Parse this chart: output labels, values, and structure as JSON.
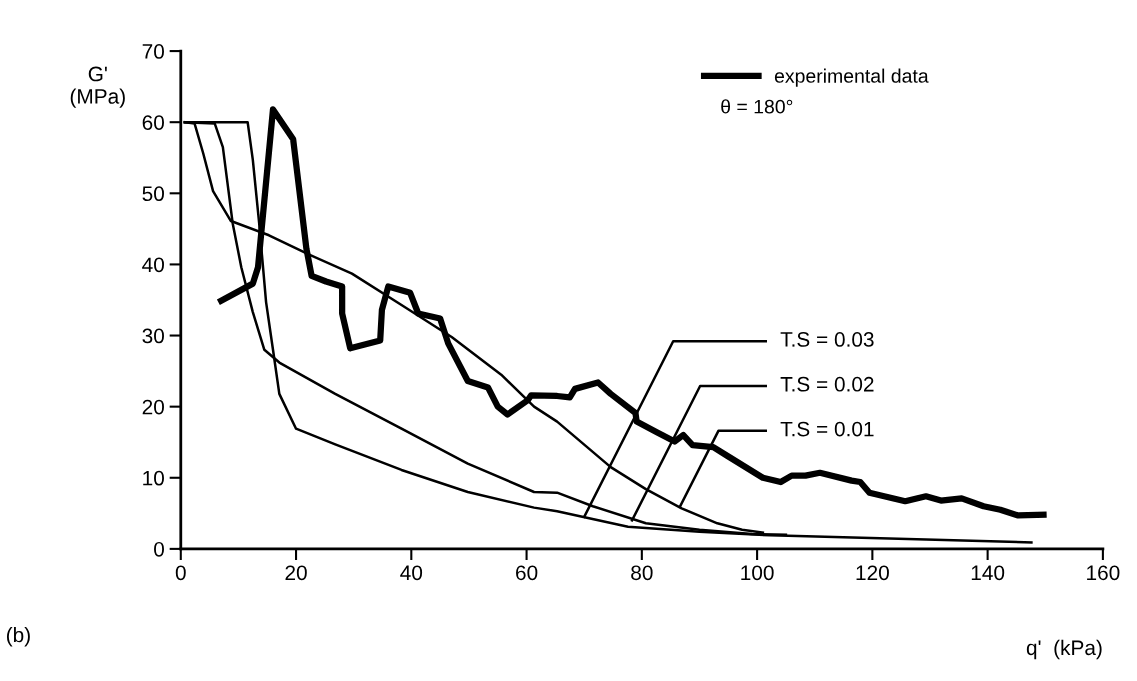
{
  "chart_data": {
    "type": "line",
    "xlabel": "q'  (kPa)",
    "ylabel": "G'\n(MPa)",
    "xlim": [
      0,
      160
    ],
    "xticks": [
      0,
      20,
      40,
      60,
      80,
      100,
      120,
      140,
      160
    ],
    "ylim": [
      0,
      70
    ],
    "yticks": [
      0,
      10,
      20,
      30,
      40,
      50,
      60,
      70
    ],
    "grid": false,
    "legend": "top right",
    "marker": "none",
    "line_style": "solid",
    "series": [
      {
        "name": "experimental data",
        "color": "#000000",
        "x": [
          7.0,
          12.5,
          13.4,
          16.0,
          19.5,
          21.8,
          22.7,
          25.2,
          28.0,
          28.0,
          29.4,
          34.6,
          34.9,
          36.0,
          39.8,
          41.2,
          45.0,
          46.4,
          49.8,
          53.3,
          55.0,
          56.7,
          60.2,
          60.8,
          65.3,
          67.5,
          68.4,
          72.4,
          74.6,
          78.9,
          79.1,
          82.6,
          85.7,
          87.2,
          88.8,
          92.4,
          94.8,
          101.0,
          104.1,
          106.0,
          108.4,
          110.9,
          116.4,
          117.9,
          119.5,
          125.7,
          129.3,
          131.9,
          135.5,
          139.3,
          142.2,
          145.3,
          149.7
        ],
        "values": [
          34.9,
          37.3,
          39.6,
          61.8,
          57.6,
          42.2,
          38.4,
          37.6,
          36.9,
          33.1,
          28.2,
          29.3,
          33.6,
          36.9,
          36.0,
          33.1,
          32.4,
          28.9,
          23.6,
          22.7,
          20.0,
          18.9,
          20.9,
          21.6,
          21.5,
          21.3,
          22.5,
          23.4,
          21.8,
          19.1,
          17.9,
          16.4,
          15.1,
          16.0,
          14.6,
          14.3,
          13.1,
          10.0,
          9.4,
          10.3,
          10.3,
          10.7,
          9.6,
          9.4,
          7.9,
          6.7,
          7.4,
          6.8,
          7.1,
          6.0,
          5.5,
          4.7,
          4.8
        ]
      },
      {
        "color": "#000000",
        "x": [
          0.7,
          2.4,
          3.9,
          5.6,
          8.7,
          15.3,
          22.2,
          29.7,
          38.3,
          47.0,
          55.6,
          61.3,
          65.3,
          74.6,
          80.7,
          86.9,
          93.1,
          97.4,
          101.0
        ],
        "values": [
          60,
          59.8,
          55.6,
          50.3,
          46.1,
          44.1,
          41.4,
          38.7,
          34.3,
          29.8,
          24.5,
          20.0,
          17.9,
          11.5,
          8.4,
          5.7,
          3.6,
          2.7,
          2.3
        ]
      },
      {
        "color": "#000000",
        "x": [
          0.7,
          5.9,
          7.3,
          9.0,
          10.5,
          12.5,
          14.5,
          17.1,
          26.8,
          38.3,
          49.8,
          61.3,
          65.3,
          71.5,
          80.7,
          90.0,
          99.1,
          105.0
        ],
        "values": [
          60,
          59.8,
          56.5,
          45.8,
          39.6,
          33.3,
          28.0,
          26.2,
          21.8,
          16.9,
          12.0,
          8.0,
          7.9,
          6.0,
          3.6,
          2.7,
          2.1,
          2.0
        ]
      },
      {
        "color": "#000000",
        "x": [
          0.7,
          11.6,
          12.5,
          13.6,
          14.8,
          16.0,
          17.1,
          20.0,
          26.8,
          38.3,
          49.8,
          61.3,
          65.3,
          77.6,
          90.0,
          102.2,
          147.6
        ],
        "values": [
          60,
          60,
          54.7,
          45.8,
          34.7,
          28.0,
          21.8,
          16.9,
          14.7,
          11.1,
          8.0,
          5.8,
          5.3,
          3.1,
          2.4,
          1.9,
          0.9
        ]
      }
    ],
    "annotations": [
      {
        "text": "T.S = 0.03",
        "x": 70.0,
        "y": 4.5
      },
      {
        "text": "T.S = 0.02",
        "x": 78.3,
        "y": 4.0
      },
      {
        "text": "T.S = 0.01",
        "x": 86.6,
        "y": 5.9
      },
      "θ = 180°",
      "(b)"
    ]
  }
}
